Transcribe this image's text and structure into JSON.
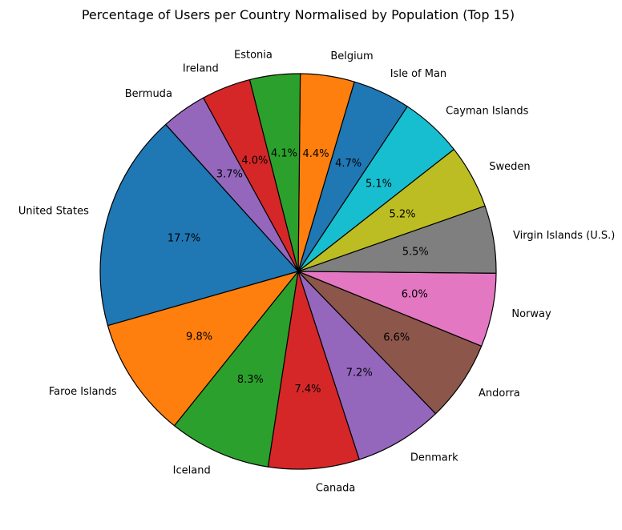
{
  "chart_data": {
    "type": "pie",
    "title": "Percentage of Users per Country Normalised by Population (Top 15)",
    "start_angle_deg": 132,
    "direction": "counterclockwise",
    "edge_color": "#000000",
    "slices": [
      {
        "label": "United States",
        "pct_text": "17.7%",
        "value": 17.7,
        "color": "#1f77b4"
      },
      {
        "label": "Faroe Islands",
        "pct_text": "9.8%",
        "value": 9.8,
        "color": "#ff7f0e"
      },
      {
        "label": "Iceland",
        "pct_text": "8.3%",
        "value": 8.3,
        "color": "#2ca02c"
      },
      {
        "label": "Canada",
        "pct_text": "7.4%",
        "value": 7.4,
        "color": "#d62728"
      },
      {
        "label": "Denmark",
        "pct_text": "7.2%",
        "value": 7.2,
        "color": "#9467bd"
      },
      {
        "label": "Andorra",
        "pct_text": "6.6%",
        "value": 6.6,
        "color": "#8c564b"
      },
      {
        "label": "Norway",
        "pct_text": "6.0%",
        "value": 6.0,
        "color": "#e377c2"
      },
      {
        "label": "Virgin Islands (U.S.)",
        "pct_text": "5.5%",
        "value": 5.5,
        "color": "#7f7f7f"
      },
      {
        "label": "Sweden",
        "pct_text": "5.2%",
        "value": 5.2,
        "color": "#bcbd22"
      },
      {
        "label": "Cayman Islands",
        "pct_text": "5.1%",
        "value": 5.1,
        "color": "#17becf"
      },
      {
        "label": "Isle of Man",
        "pct_text": "4.7%",
        "value": 4.7,
        "color": "#1f77b4"
      },
      {
        "label": "Belgium",
        "pct_text": "4.4%",
        "value": 4.4,
        "color": "#ff7f0e"
      },
      {
        "label": "Estonia",
        "pct_text": "4.1%",
        "value": 4.1,
        "color": "#2ca02c"
      },
      {
        "label": "Ireland",
        "pct_text": "4.0%",
        "value": 4.0,
        "color": "#d62728"
      },
      {
        "label": "Bermuda",
        "pct_text": "3.7%",
        "value": 3.7,
        "color": "#9467bd"
      }
    ]
  }
}
